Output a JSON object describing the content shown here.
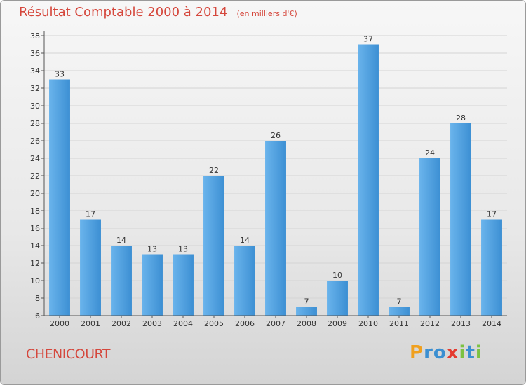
{
  "chart_data": {
    "type": "bar",
    "title": "Résultat Comptable 2000 à 2014",
    "subtitle": "(en milliers d'€)",
    "categories": [
      "2000",
      "2001",
      "2002",
      "2003",
      "2004",
      "2005",
      "2006",
      "2007",
      "2008",
      "2009",
      "2010",
      "2011",
      "2012",
      "2013",
      "2014"
    ],
    "values": [
      33,
      17,
      14,
      13,
      13,
      22,
      14,
      26,
      7,
      10,
      37,
      7,
      24,
      28,
      17
    ],
    "ylim": [
      6,
      38
    ],
    "yticks": [
      6,
      8,
      10,
      12,
      14,
      16,
      18,
      20,
      22,
      24,
      26,
      28,
      30,
      32,
      34,
      36,
      38
    ],
    "grid": true,
    "bar_color": "#3c8fd3",
    "bar_color_light": "#6ab4ec"
  },
  "place": "CHENICOURT",
  "brand": {
    "letters": [
      "P",
      "r",
      "o",
      "x",
      "i",
      "t",
      "i"
    ],
    "colors": [
      "#f0a01e",
      "#3b8fd1",
      "#3b8fd1",
      "#e43a2f",
      "#7cc242",
      "#3b8fd1",
      "#7cc242"
    ]
  }
}
